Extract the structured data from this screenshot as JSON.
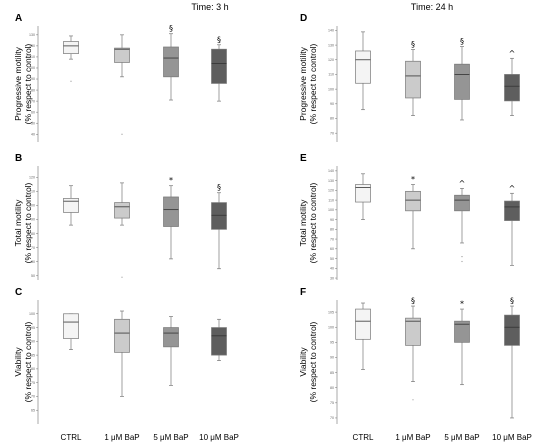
{
  "columns": [
    {
      "title": "Time: 3 h"
    },
    {
      "title": "Time: 24 h"
    }
  ],
  "chart_data": [
    {
      "panel": "A",
      "type": "boxplot",
      "ylabel": "Progressive motility",
      "ylabel2": "(% respect to control)",
      "ylim": [
        33,
        138
      ],
      "ticks": [
        40,
        50,
        60,
        70,
        80,
        90,
        100,
        110,
        120,
        130
      ],
      "tick_labels": [
        "40",
        "50",
        "60",
        "70",
        "80",
        "90",
        "100",
        "110",
        "120",
        "130"
      ],
      "categories": [
        "CTRL",
        "1 μM BaP",
        "5 μM BaP",
        "10 μM BaP"
      ],
      "boxes": [
        {
          "min": 108,
          "q1": 113,
          "median": 120,
          "q3": 124,
          "max": 129,
          "sig": "",
          "outliers": [
            88
          ]
        },
        {
          "min": 92,
          "q1": 105,
          "median": 117,
          "q3": 118,
          "max": 130,
          "sig": "",
          "outliers": [
            40
          ]
        },
        {
          "min": 71,
          "q1": 92,
          "median": 109,
          "q3": 119,
          "max": 131,
          "sig": "§",
          "outliers": []
        },
        {
          "min": 70,
          "q1": 86,
          "median": 104,
          "q3": 117,
          "max": 121,
          "sig": "§",
          "outliers": []
        }
      ]
    },
    {
      "panel": "B",
      "type": "boxplot",
      "ylabel": "Total motility",
      "ylabel2": "(% respect to control)",
      "ylim": [
        47,
        128
      ],
      "ticks": [
        50,
        60,
        70,
        80,
        90,
        100,
        110,
        120
      ],
      "tick_labels": [
        "50",
        "60",
        "70",
        "80",
        "90",
        "100",
        "110",
        "120"
      ],
      "categories": [
        "CTRL",
        "1 μM BaP",
        "5 μM BaP",
        "10 μM BaP"
      ],
      "boxes": [
        {
          "min": 86,
          "q1": 95,
          "median": 103,
          "q3": 105,
          "max": 114,
          "sig": "",
          "outliers": []
        },
        {
          "min": 86,
          "q1": 91,
          "median": 99,
          "q3": 102,
          "max": 116,
          "sig": "",
          "outliers": [
            49
          ]
        },
        {
          "min": 62,
          "q1": 85,
          "median": 97,
          "q3": 106,
          "max": 114,
          "sig": "*",
          "outliers": []
        },
        {
          "min": 55,
          "q1": 83,
          "median": 93,
          "q3": 102,
          "max": 109,
          "sig": "§",
          "outliers": []
        }
      ]
    },
    {
      "panel": "C",
      "type": "boxplot",
      "ylabel": "Viability",
      "ylabel2": "(% respect to control)",
      "ylim": [
        60,
        105
      ],
      "ticks": [
        65,
        70,
        75,
        80,
        85,
        90,
        95,
        100
      ],
      "tick_labels": [
        "65",
        "70",
        "75",
        "80",
        "85",
        "90",
        "95",
        "100"
      ],
      "categories": [
        "CTRL",
        "1 μM BaP",
        "5 μM BaP",
        "10 μM BaP"
      ],
      "boxes": [
        {
          "min": 87,
          "q1": 91,
          "median": 97,
          "q3": 100,
          "max": 100,
          "sig": "",
          "outliers": []
        },
        {
          "min": 70,
          "q1": 86,
          "median": 93,
          "q3": 98,
          "max": 101,
          "sig": "",
          "outliers": []
        },
        {
          "min": 74,
          "q1": 88,
          "median": 93,
          "q3": 95,
          "max": 99,
          "sig": "",
          "outliers": []
        },
        {
          "min": 83,
          "q1": 85,
          "median": 92,
          "q3": 95,
          "max": 98,
          "sig": "",
          "outliers": []
        }
      ]
    },
    {
      "panel": "D",
      "type": "boxplot",
      "ylabel": "Progressive motility",
      "ylabel2": "(% respect to control)",
      "ylim": [
        64,
        143
      ],
      "ticks": [
        70,
        80,
        90,
        100,
        110,
        120,
        130,
        140
      ],
      "tick_labels": [
        "70",
        "80",
        "90",
        "100",
        "110",
        "120",
        "130",
        "140"
      ],
      "categories": [
        "CTRL",
        "1 μM BaP",
        "5 μM BaP",
        "10 μM BaP"
      ],
      "boxes": [
        {
          "min": 86,
          "q1": 104,
          "median": 120,
          "q3": 126,
          "max": 139,
          "sig": "",
          "outliers": []
        },
        {
          "min": 82,
          "q1": 94,
          "median": 109,
          "q3": 119,
          "max": 127,
          "sig": "§",
          "outliers": []
        },
        {
          "min": 79,
          "q1": 93,
          "median": 110,
          "q3": 117,
          "max": 129,
          "sig": "§",
          "outliers": []
        },
        {
          "min": 82,
          "q1": 92,
          "median": 102,
          "q3": 110,
          "max": 121,
          "sig": "^",
          "outliers": []
        }
      ]
    },
    {
      "panel": "E",
      "type": "boxplot",
      "ylabel": "Total motility",
      "ylabel2": "(% respect to control)",
      "ylim": [
        28,
        145
      ],
      "ticks": [
        30,
        40,
        50,
        60,
        70,
        80,
        90,
        100,
        110,
        120,
        130,
        140
      ],
      "tick_labels": [
        "30",
        "40",
        "50",
        "60",
        "70",
        "80",
        "90",
        "100",
        "110",
        "120",
        "130",
        "140"
      ],
      "categories": [
        "CTRL",
        "1 μM BaP",
        "5 μM BaP",
        "10 μM BaP"
      ],
      "boxes": [
        {
          "min": 90,
          "q1": 108,
          "median": 123,
          "q3": 126,
          "max": 137,
          "sig": "",
          "outliers": []
        },
        {
          "min": 60,
          "q1": 99,
          "median": 110,
          "q3": 119,
          "max": 126,
          "sig": "*",
          "outliers": []
        },
        {
          "min": 66,
          "q1": 99,
          "median": 110,
          "q3": 115,
          "max": 122,
          "sig": "^",
          "outliers": [
            52,
            47
          ]
        },
        {
          "min": 43,
          "q1": 89,
          "median": 103,
          "q3": 109,
          "max": 117,
          "sig": "^",
          "outliers": []
        }
      ]
    },
    {
      "panel": "F",
      "type": "boxplot",
      "ylabel": "Viability",
      "ylabel2": "(% respect to control)",
      "ylim": [
        68,
        109
      ],
      "ticks": [
        70,
        75,
        80,
        85,
        90,
        95,
        100,
        105
      ],
      "tick_labels": [
        "70",
        "75",
        "80",
        "85",
        "90",
        "95",
        "100",
        "105"
      ],
      "categories": [
        "CTRL",
        "1 μM BaP",
        "5 μM BaP",
        "10 μM BaP"
      ],
      "boxes": [
        {
          "min": 86,
          "q1": 96,
          "median": 102,
          "q3": 106,
          "max": 108,
          "sig": "",
          "outliers": []
        },
        {
          "min": 82,
          "q1": 94,
          "median": 102,
          "q3": 103,
          "max": 107,
          "sig": "§",
          "outliers": [
            76
          ]
        },
        {
          "min": 81,
          "q1": 95,
          "median": 101,
          "q3": 102,
          "max": 106,
          "sig": "*",
          "outliers": []
        },
        {
          "min": 70,
          "q1": 94,
          "median": 100,
          "q3": 104,
          "max": 107,
          "sig": "§",
          "outliers": []
        }
      ]
    }
  ],
  "colors": {
    "box_fills": [
      "#f4f4f4",
      "#cbcbcb",
      "#959595",
      "#5e5e5e"
    ],
    "stroke": "#777777",
    "median": "#333333",
    "axis": "#555555"
  }
}
